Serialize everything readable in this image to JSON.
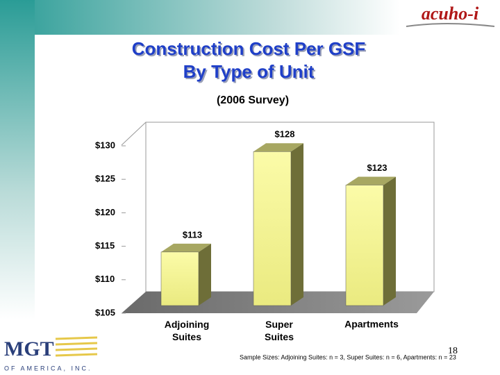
{
  "chart_data": {
    "type": "bar3d",
    "title": [
      "Construction Cost Per GSF",
      "By Type of Unit"
    ],
    "subtitle": "(2006 Survey)",
    "categories": [
      "Adjoining Suites",
      "Super Suites",
      "Apartments"
    ],
    "values": [
      113,
      128,
      123
    ],
    "value_labels": [
      "$113",
      "$128",
      "$123"
    ],
    "color": "#f4f49a",
    "ylim": [
      105,
      130
    ],
    "yticks": [
      {
        "value": 105,
        "label": "$105"
      },
      {
        "value": 110,
        "label": "$110"
      },
      {
        "value": 115,
        "label": "$115"
      },
      {
        "value": 120,
        "label": "$120"
      },
      {
        "value": 125,
        "label": "$125"
      },
      {
        "value": 130,
        "label": "$130"
      }
    ],
    "footnote": "Sample Sizes:  Adjoining Suites: n = 3, Super Suites: n = 6, Apartments: n = 23"
  },
  "page_number": "18",
  "logos": {
    "acuho": "acuho-i",
    "mgt": "MGT",
    "mgt_sub": "OF AMERICA, INC."
  }
}
